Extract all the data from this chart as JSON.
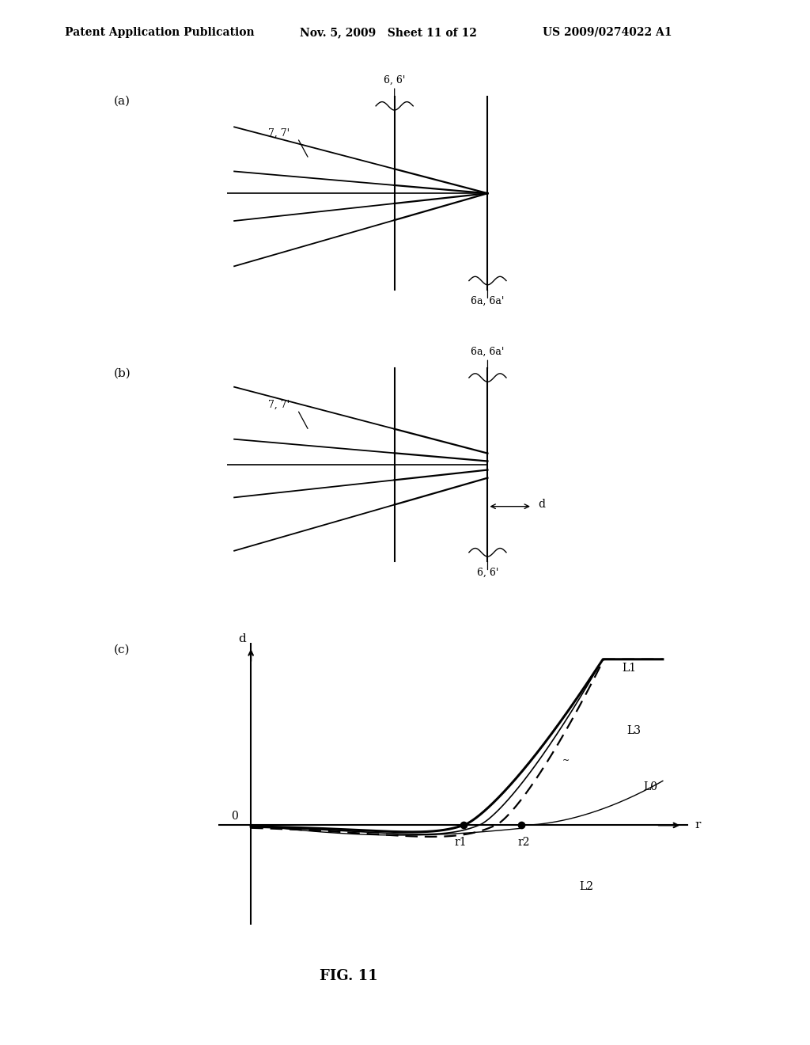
{
  "title": "FIG. 11",
  "header_left": "Patent Application Publication",
  "header_mid": "Nov. 5, 2009   Sheet 11 of 12",
  "header_right": "US 2009/0274022 A1",
  "background_color": "#ffffff",
  "text_color": "#000000",
  "panel_labels": [
    "(a)",
    "(b)",
    "(c)"
  ],
  "panel_a": {
    "label_66prime": "6, 6'",
    "label_77prime": "7, 7'",
    "label_6a6aprime": "6a, 6a'"
  },
  "panel_b": {
    "label_6a6aprime": "6a, 6a'",
    "label_77prime": "7, 7'",
    "label_66prime": "6, 6'",
    "label_d": "d"
  },
  "panel_c": {
    "xlabel": "r",
    "ylabel": "d",
    "origin_label": "0",
    "r1_label": "r1",
    "r2_label": "r2",
    "L0_label": "L0",
    "L1_label": "L1",
    "L2_label": "L2",
    "L3_label": "L3"
  }
}
